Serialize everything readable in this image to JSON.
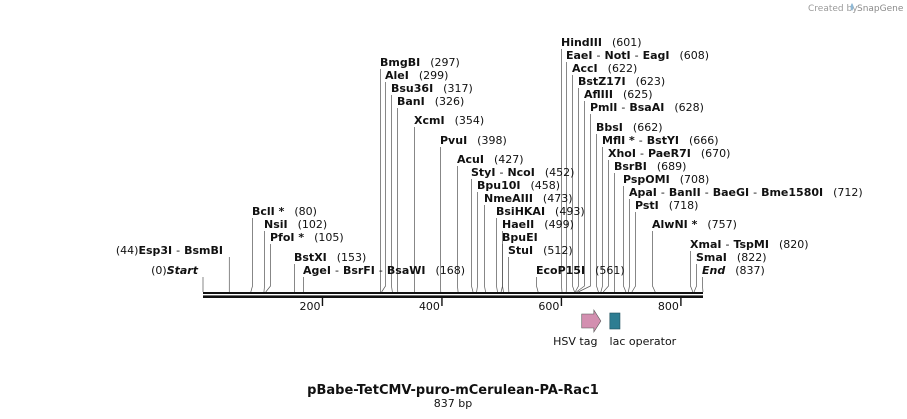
{
  "header": {
    "created_by": "Created by",
    "brand": "SnapGene"
  },
  "map": {
    "name": "pBabe-TetCMV-puro-mCerulean-PA-Rac1",
    "length_label": "837 bp",
    "length_bp": 837,
    "ticks": [
      200,
      400,
      600,
      800
    ],
    "sites": [
      {
        "names": [
          "BmgBI"
        ],
        "pos": "(297)",
        "bp": 297
      },
      {
        "names": [
          "AleI"
        ],
        "pos": "(299)",
        "bp": 299
      },
      {
        "names": [
          "Bsu36I"
        ],
        "pos": "(317)",
        "bp": 317
      },
      {
        "names": [
          "BanI"
        ],
        "pos": "(326)",
        "bp": 326
      },
      {
        "names": [
          "XcmI"
        ],
        "pos": "(354)",
        "bp": 354
      },
      {
        "names": [
          "PvuI"
        ],
        "pos": "(398)",
        "bp": 398
      },
      {
        "names": [
          "AcuI"
        ],
        "pos": "(427)",
        "bp": 427
      },
      {
        "names": [
          "StyI",
          "NcoI"
        ],
        "pos": "(452)",
        "bp": 452
      },
      {
        "names": [
          "Bpu10I"
        ],
        "pos": "(458)",
        "bp": 458
      },
      {
        "names": [
          "NmeAIII"
        ],
        "pos": "(473)",
        "bp": 473
      },
      {
        "names": [
          "BsiHKAI"
        ],
        "pos": "(493)",
        "bp": 493
      },
      {
        "names": [
          "HaeII"
        ],
        "pos": "(499)",
        "bp": 499
      },
      {
        "names": [
          "BpuEI"
        ],
        "pos": "",
        "bp": 503
      },
      {
        "names": [
          "StuI"
        ],
        "pos": "(512)",
        "bp": 512
      },
      {
        "names": [
          "EcoP15I"
        ],
        "pos": "(561)",
        "bp": 561
      },
      {
        "names": [
          "HindIII"
        ],
        "pos": "(601)",
        "bp": 601
      },
      {
        "names": [
          "EaeI",
          "NotI",
          "EagI"
        ],
        "pos": "(608)",
        "bp": 608
      },
      {
        "names": [
          "AccI"
        ],
        "pos": "(622)",
        "bp": 622
      },
      {
        "names": [
          "BstZ17I"
        ],
        "pos": "(623)",
        "bp": 623
      },
      {
        "names": [
          "AflIII"
        ],
        "pos": "(625)",
        "bp": 625
      },
      {
        "names": [
          "PmlI",
          "BsaAI"
        ],
        "pos": "(628)",
        "bp": 628
      },
      {
        "names": [
          "BbsI"
        ],
        "pos": "(662)",
        "bp": 662
      },
      {
        "names": [
          "MflI *",
          "BstYI"
        ],
        "pos": "(666)",
        "bp": 666
      },
      {
        "names": [
          "XhoI",
          "PaeR7I"
        ],
        "pos": "(670)",
        "bp": 670
      },
      {
        "names": [
          "BsrBI"
        ],
        "pos": "(689)",
        "bp": 689
      },
      {
        "names": [
          "PspOMI"
        ],
        "pos": "(708)",
        "bp": 708
      },
      {
        "names": [
          "ApaI",
          "BanII",
          "BaeGI",
          "Bme1580I"
        ],
        "pos": "(712)",
        "bp": 712
      },
      {
        "names": [
          "PstI"
        ],
        "pos": "(718)",
        "bp": 718
      },
      {
        "names": [
          "AlwNI *"
        ],
        "pos": "(757)",
        "bp": 757
      },
      {
        "names": [
          "XmaI",
          "TspMI"
        ],
        "pos": "(820)",
        "bp": 820
      },
      {
        "names": [
          "SmaI"
        ],
        "pos": "(822)",
        "bp": 822
      },
      {
        "names": [
          "End"
        ],
        "pos": "(837)",
        "bp": 837,
        "italic": true
      },
      {
        "names": [
          "BclI *"
        ],
        "pos": "(80)",
        "bp": 80
      },
      {
        "names": [
          "NsiI"
        ],
        "pos": "(102)",
        "bp": 102
      },
      {
        "names": [
          "PfoI *"
        ],
        "pos": "(105)",
        "bp": 105
      },
      {
        "names": [
          "BstXI"
        ],
        "pos": "(153)",
        "bp": 153
      },
      {
        "names": [
          "AgeI",
          "BsrFI",
          "BsaWI"
        ],
        "pos": "(168)",
        "bp": 168
      },
      {
        "names": [
          "Esp3I",
          "BsmBI"
        ],
        "pos": "(44)",
        "bp": 44,
        "pos_first": true
      },
      {
        "names": [
          "Start"
        ],
        "pos": "(0)",
        "bp": 0,
        "italic": true,
        "pos_first": true
      }
    ],
    "features": [
      {
        "name": "HSV tag",
        "start_bp": 634,
        "end_bp": 666,
        "color": "#d38fb0",
        "type": "arrow"
      },
      {
        "name": "lac operator",
        "start_bp": 681,
        "end_bp": 698,
        "color": "#2d7d92",
        "type": "box"
      }
    ]
  }
}
